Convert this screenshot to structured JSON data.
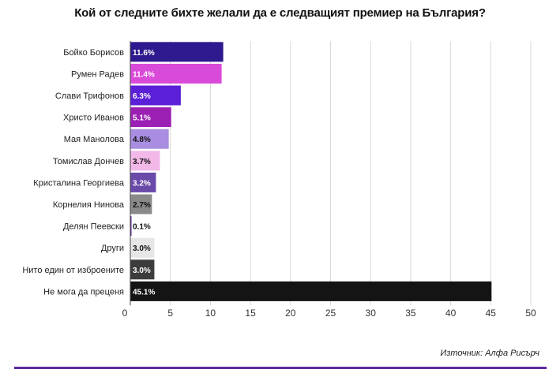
{
  "chart_data": {
    "type": "bar",
    "orientation": "horizontal",
    "title": "Кой от следните бихте желали да е следващият премиер на България?",
    "categories": [
      "Бойко Борисов",
      "Румен Радев",
      "Слави Трифонов",
      "Христо Иванов",
      "Мая Манолова",
      "Томислав Дончев",
      "Кристалина Георгиева",
      "Корнелия Нинова",
      "Делян Пеевски",
      "Други",
      "Нито един от изброените",
      "Не мога да преценя"
    ],
    "values": [
      11.6,
      11.4,
      6.3,
      5.1,
      4.8,
      3.7,
      3.2,
      2.7,
      0.1,
      3.0,
      3.0,
      45.1
    ],
    "value_labels": [
      "11.6%",
      "11.4%",
      "6.3%",
      "5.1%",
      "4.8%",
      "3.7%",
      "3.2%",
      "2.7%",
      "0.1%",
      "3.0%",
      "3.0%",
      "45.1%"
    ],
    "colors": [
      "#2e1a8e",
      "#d94ad9",
      "#5a1fd6",
      "#9b1fb3",
      "#a98de0",
      "#f2b8e8",
      "#6a4aa8",
      "#8a8a8a",
      "#5b2a96",
      "#e6e6e6",
      "#3c3c3c",
      "#141414"
    ],
    "label_colors": [
      "#ffffff",
      "#ffffff",
      "#ffffff",
      "#ffffff",
      "#111111",
      "#111111",
      "#ffffff",
      "#111111",
      "#111111",
      "#111111",
      "#ffffff",
      "#ffffff"
    ],
    "xlim": [
      0,
      50
    ],
    "xticks": [
      0,
      5,
      10,
      15,
      20,
      25,
      30,
      35,
      40,
      45,
      50
    ],
    "grid": true,
    "source": "Източник: Алфа Рисърч",
    "accent_color": "#5b2a9e"
  }
}
